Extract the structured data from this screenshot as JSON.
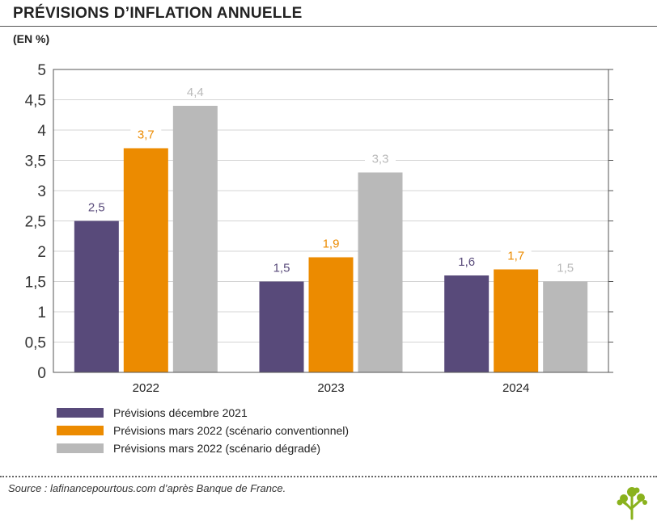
{
  "header": {
    "title": "PRÉVISIONS D’INFLATION ANNUELLE",
    "unit": "(EN %)"
  },
  "chart_data": {
    "type": "bar",
    "categories": [
      "2022",
      "2023",
      "2024"
    ],
    "series": [
      {
        "name": "Prévisions décembre 2021",
        "color": "#584a7a",
        "values": [
          2.5,
          1.5,
          1.6
        ],
        "labels": [
          "2,5",
          "1,5",
          "1,6"
        ]
      },
      {
        "name": "Prévisions mars 2022 (scénario conventionnel)",
        "color": "#ec8b00",
        "values": [
          3.7,
          1.9,
          1.7
        ],
        "labels": [
          "3,7",
          "1,9",
          "1,7"
        ]
      },
      {
        "name": "Prévisions mars 2022 (scénario dégradé)",
        "color": "#b9b9b9",
        "values": [
          4.4,
          3.3,
          1.5
        ],
        "labels": [
          "4,4",
          "3,3",
          "1,5"
        ]
      }
    ],
    "ylim": [
      0,
      5
    ],
    "yticks": [
      0,
      0.5,
      1,
      1.5,
      2,
      2.5,
      3,
      3.5,
      4,
      4.5,
      5
    ],
    "ytick_labels": [
      "0",
      "0,5",
      "1",
      "1,5",
      "2",
      "2,5",
      "3",
      "3,5",
      "4",
      "4,5",
      "5"
    ],
    "grid": true,
    "legend": "bottom-left"
  },
  "footer": {
    "source": "Source : lafinancepourtous.com d’après Banque de France.",
    "logo_icon": "tree-icon"
  }
}
